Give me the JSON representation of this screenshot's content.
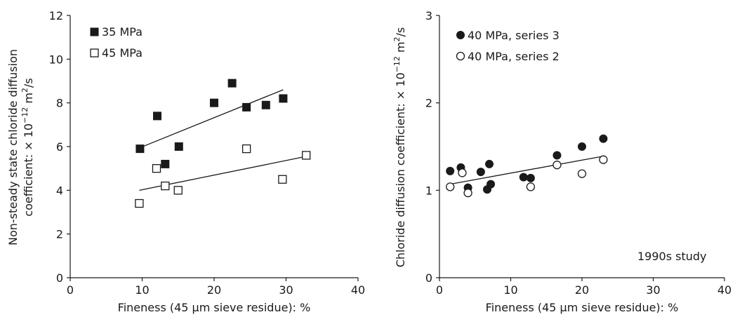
{
  "colors": {
    "ink": "#1a1a1a",
    "open_fill": "#ffffff"
  },
  "chart_data": [
    {
      "type": "scatter",
      "xlabel": "Fineness (45 µm sieve residue): %",
      "ylabel_line1": "Non-steady state chloride diffusion",
      "ylabel_line2": "coefficient: × 10",
      "ylabel_exp": "−12",
      "ylabel_unit_pre": " m",
      "ylabel_unit_sup": "2",
      "ylabel_unit_post": "/s",
      "xlim": [
        0,
        40
      ],
      "ylim": [
        0,
        12
      ],
      "xticks": [
        0,
        10,
        20,
        30,
        40
      ],
      "yticks": [
        0,
        2,
        4,
        6,
        8,
        10,
        12
      ],
      "legend_position": "top-left",
      "series": [
        {
          "name": "35 MPa",
          "marker": "filled-square",
          "x": [
            9.7,
            12.1,
            13.2,
            15.1,
            20.0,
            22.5,
            24.5,
            27.2,
            29.6
          ],
          "y": [
            5.9,
            7.4,
            5.2,
            6.0,
            8.0,
            8.9,
            7.8,
            7.9,
            8.2
          ],
          "trendline": [
            [
              9.7,
              5.95
            ],
            [
              29.6,
              8.6
            ]
          ]
        },
        {
          "name": "45 MPa",
          "marker": "open-square",
          "x": [
            9.6,
            12.0,
            13.2,
            15.0,
            24.5,
            29.5,
            32.8
          ],
          "y": [
            3.4,
            5.0,
            4.2,
            4.0,
            5.9,
            4.5,
            5.6
          ],
          "trendline": [
            [
              9.6,
              4.0
            ],
            [
              32.8,
              5.55
            ]
          ]
        }
      ]
    },
    {
      "type": "scatter",
      "xlabel": "Fineness (45 µm sieve residue): %",
      "ylabel_line1": "Chloride diffusion coefficient: × 10",
      "ylabel_exp": "−12",
      "ylabel_unit_pre": " m",
      "ylabel_unit_sup": "2",
      "ylabel_unit_post": "/s",
      "xlim": [
        0,
        40
      ],
      "ylim": [
        0,
        3
      ],
      "xticks": [
        0,
        10,
        20,
        30,
        40
      ],
      "yticks": [
        0,
        1,
        2,
        3
      ],
      "legend_position": "top-left",
      "annotation": "1990s study",
      "series": [
        {
          "name": "40 MPa, series 3",
          "marker": "filled-circle",
          "x": [
            1.5,
            3.0,
            4.0,
            5.8,
            6.7,
            7.0,
            7.2,
            11.8,
            12.8,
            16.5,
            20.0,
            23.0
          ],
          "y": [
            1.22,
            1.26,
            1.03,
            1.21,
            1.01,
            1.3,
            1.07,
            1.15,
            1.14,
            1.4,
            1.5,
            1.59
          ]
        },
        {
          "name": "40 MPa, series 2",
          "marker": "open-circle",
          "x": [
            1.5,
            3.2,
            4.0,
            12.8,
            16.5,
            20.0,
            23.0
          ],
          "y": [
            1.04,
            1.2,
            0.97,
            1.04,
            1.29,
            1.19,
            1.35
          ]
        }
      ],
      "trendline": [
        [
          1.5,
          1.07
        ],
        [
          23.0,
          1.39
        ]
      ]
    }
  ]
}
